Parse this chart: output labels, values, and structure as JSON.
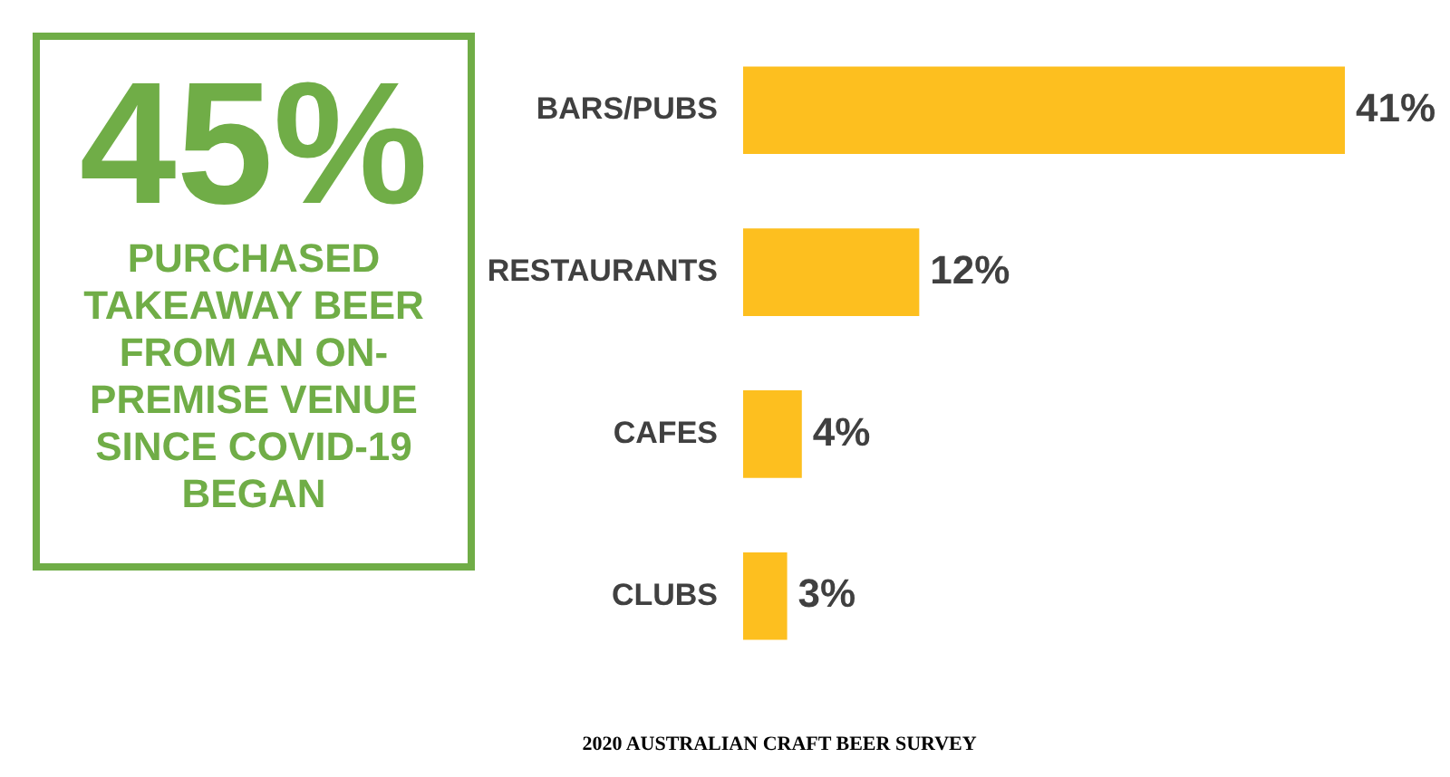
{
  "chart_data": [
    {
      "type": "other",
      "title": "45%",
      "subtitle": "PURCHASED TAKEAWAY BEER FROM AN ON-PREMISE VENUE SINCE COVID-19 BEGAN",
      "color": "#70ad47"
    },
    {
      "type": "bar",
      "orientation": "horizontal",
      "categories": [
        "BARS/PUBS",
        "RESTAURANTS",
        "CAFES",
        "CLUBS"
      ],
      "values": [
        41,
        12,
        4,
        3
      ],
      "value_labels": [
        "41%",
        "12%",
        "4%",
        "3%"
      ],
      "color": "#fdbf1f",
      "annotations": [
        "2020 AUSTRALIAN CRAFT BEER SURVEY"
      ]
    }
  ]
}
